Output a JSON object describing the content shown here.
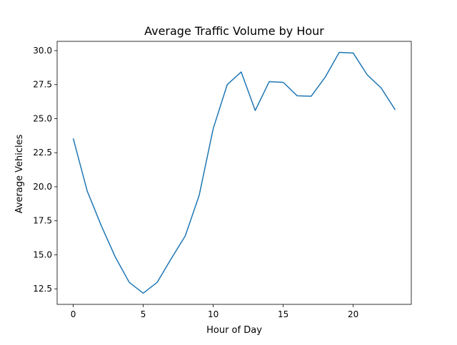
{
  "chart_data": {
    "type": "line",
    "title": "Average Traffic Volume by Hour",
    "xlabel": "Hour of Day",
    "ylabel": "Average Vehicles",
    "xlim": [
      -1.15,
      24.15
    ],
    "ylim": [
      11.36,
      30.68
    ],
    "xticks": [
      0,
      5,
      10,
      15,
      20
    ],
    "yticks": [
      12.5,
      15.0,
      17.5,
      20.0,
      22.5,
      25.0,
      27.5,
      30.0
    ],
    "ytick_labels": [
      "12.5",
      "15.0",
      "17.5",
      "20.0",
      "22.5",
      "25.0",
      "27.5",
      "30.0"
    ],
    "grid": false,
    "line_color": "#1f77b4",
    "series": [
      {
        "x": [
          0,
          1,
          2,
          3,
          4,
          5,
          6,
          7,
          8,
          9,
          10,
          11,
          12,
          13,
          14,
          15,
          16,
          17,
          18,
          19,
          20,
          21,
          22,
          23
        ],
        "values": [
          23.55,
          19.68,
          17.15,
          14.85,
          12.98,
          12.18,
          12.98,
          14.72,
          16.38,
          19.38,
          24.27,
          27.5,
          28.43,
          25.6,
          27.72,
          27.67,
          26.68,
          26.65,
          28.05,
          29.87,
          29.82,
          28.22,
          27.25,
          25.65
        ]
      }
    ]
  }
}
